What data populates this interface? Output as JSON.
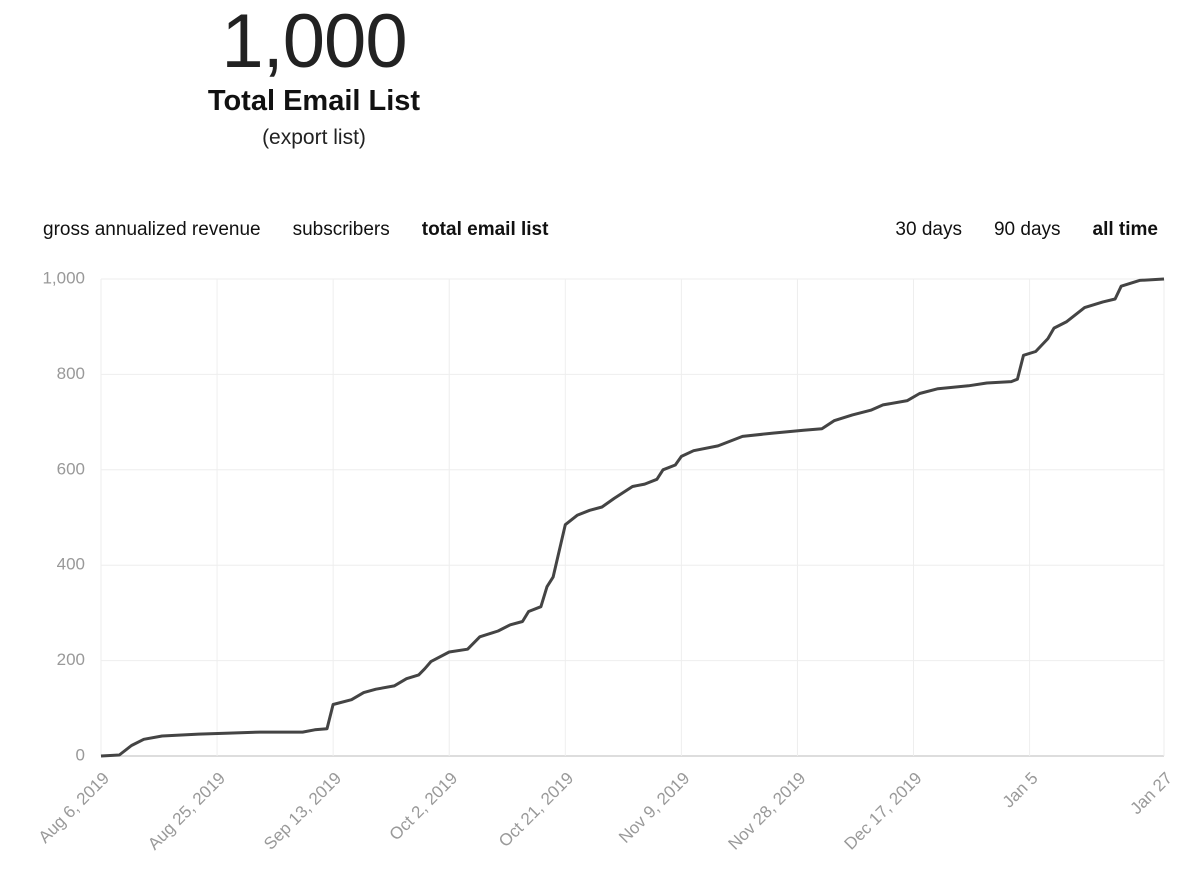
{
  "header": {
    "value": "1,000",
    "label": "Total Email List",
    "link": "(export list)"
  },
  "metric_tabs": [
    "gross annualized revenue",
    "subscribers",
    "total email list"
  ],
  "active_metric": 2,
  "range_tabs": [
    "30 days",
    "90 days",
    "all time"
  ],
  "active_range": 2,
  "chart_data": {
    "type": "line",
    "color": "#444444",
    "grid": true,
    "x": [
      "2019-08-06",
      "2019-08-09",
      "2019-08-11",
      "2019-08-13",
      "2019-08-16",
      "2019-08-22",
      "2019-08-27",
      "2019-09-01",
      "2019-09-08",
      "2019-09-10",
      "2019-09-12",
      "2019-09-13",
      "2019-09-16",
      "2019-09-18",
      "2019-09-20",
      "2019-09-23",
      "2019-09-25",
      "2019-09-27",
      "2019-09-28",
      "2019-09-29",
      "2019-10-02",
      "2019-10-05",
      "2019-10-07",
      "2019-10-09",
      "2019-10-10",
      "2019-10-12",
      "2019-10-14",
      "2019-10-15",
      "2019-10-17",
      "2019-10-18",
      "2019-10-19",
      "2019-10-21",
      "2019-10-23",
      "2019-10-25",
      "2019-10-27",
      "2019-10-29",
      "2019-11-01",
      "2019-11-03",
      "2019-11-05",
      "2019-11-06",
      "2019-11-08",
      "2019-11-09",
      "2019-11-11",
      "2019-11-15",
      "2019-11-19",
      "2019-11-24",
      "2019-11-29",
      "2019-12-02",
      "2019-12-04",
      "2019-12-07",
      "2019-12-10",
      "2019-12-12",
      "2019-12-16",
      "2019-12-18",
      "2019-12-21",
      "2019-12-26",
      "2019-12-29",
      "2020-01-02",
      "2020-01-03",
      "2020-01-04",
      "2020-01-06",
      "2020-01-08",
      "2020-01-09",
      "2020-01-11",
      "2020-01-14",
      "2020-01-17",
      "2020-01-19",
      "2020-01-20",
      "2020-01-23",
      "2020-01-27"
    ],
    "values": [
      0,
      2,
      22,
      35,
      42,
      46,
      48,
      50,
      50,
      55,
      57,
      108,
      118,
      133,
      140,
      147,
      162,
      170,
      183,
      198,
      218,
      224,
      250,
      258,
      262,
      275,
      282,
      303,
      313,
      355,
      375,
      485,
      505,
      515,
      522,
      540,
      565,
      570,
      580,
      600,
      610,
      628,
      640,
      650,
      670,
      677,
      683,
      686,
      703,
      715,
      725,
      736,
      745,
      760,
      770,
      776,
      782,
      785,
      790,
      840,
      848,
      875,
      897,
      910,
      940,
      952,
      958,
      985,
      997,
      1000
    ],
    "xlim": [
      "2019-08-06",
      "2020-01-27"
    ],
    "xticks": [
      {
        "value": "2019-08-06",
        "label": "Aug 6, 2019"
      },
      {
        "value": "2019-08-25",
        "label": "Aug 25, 2019"
      },
      {
        "value": "2019-09-13",
        "label": "Sep 13, 2019"
      },
      {
        "value": "2019-10-02",
        "label": "Oct 2, 2019"
      },
      {
        "value": "2019-10-21",
        "label": "Oct 21, 2019"
      },
      {
        "value": "2019-11-09",
        "label": "Nov 9, 2019"
      },
      {
        "value": "2019-11-28",
        "label": "Nov 28, 2019"
      },
      {
        "value": "2019-12-17",
        "label": "Dec 17, 2019"
      },
      {
        "value": "2020-01-05",
        "label": "Jan 5"
      },
      {
        "value": "2020-01-27",
        "label": "Jan 27"
      }
    ],
    "ylim": [
      0,
      1000
    ],
    "yticks": [
      0,
      200,
      400,
      600,
      800,
      {
        "value": 1000,
        "label": "1,000"
      }
    ]
  }
}
